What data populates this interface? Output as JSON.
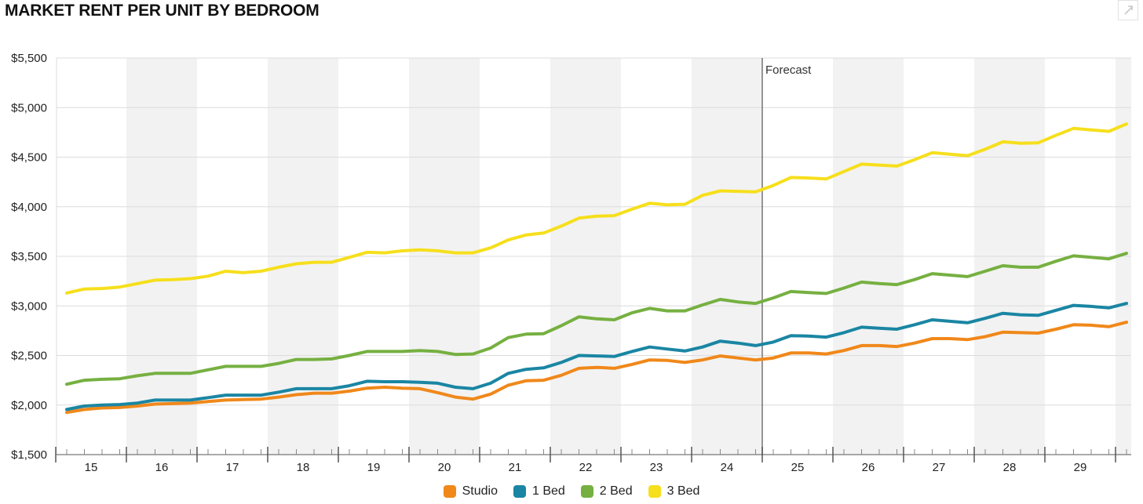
{
  "title": "MARKET RENT PER UNIT BY BEDROOM",
  "expand_icon": "expand-icon",
  "chart_data": {
    "type": "line",
    "ylim": [
      1500,
      5500
    ],
    "yticks": [
      "$1,500",
      "$2,000",
      "$2,500",
      "$3,000",
      "$3,500",
      "$4,000",
      "$4,500",
      "$5,000",
      "$5,500"
    ],
    "ytick_values": [
      1500,
      2000,
      2500,
      3000,
      3500,
      4000,
      4500,
      5000,
      5500
    ],
    "xticks": [
      "15",
      "16",
      "17",
      "18",
      "19",
      "20",
      "21",
      "22",
      "23",
      "24",
      "25",
      "26",
      "27",
      "28",
      "29"
    ],
    "x_start_quarter": "2015 Q1",
    "annotation": "Forecast",
    "forecast_after_quarter_index": 39,
    "grid": true,
    "legend_position": "bottom",
    "series": [
      {
        "name": "Studio",
        "color": "#f0881a",
        "values": [
          1925,
          1955,
          1970,
          1975,
          1990,
          2010,
          2015,
          2020,
          2035,
          2050,
          2055,
          2060,
          2080,
          2105,
          2120,
          2120,
          2140,
          2170,
          2180,
          2170,
          2165,
          2125,
          2080,
          2060,
          2110,
          2200,
          2245,
          2250,
          2300,
          2370,
          2380,
          2370,
          2410,
          2455,
          2450,
          2430,
          2455,
          2495,
          2475,
          2455,
          2475,
          2525,
          2525,
          2515,
          2550,
          2600,
          2600,
          2590,
          2625,
          2670,
          2670,
          2660,
          2690,
          2735,
          2730,
          2725,
          2765,
          2810,
          2805,
          2790,
          2835
        ]
      },
      {
        "name": "1 Bed",
        "color": "#1a86a3",
        "values": [
          1955,
          1990,
          2000,
          2005,
          2020,
          2050,
          2050,
          2050,
          2075,
          2100,
          2100,
          2100,
          2130,
          2165,
          2165,
          2165,
          2195,
          2240,
          2235,
          2235,
          2230,
          2220,
          2180,
          2165,
          2220,
          2320,
          2360,
          2375,
          2430,
          2500,
          2495,
          2490,
          2540,
          2585,
          2565,
          2545,
          2585,
          2645,
          2625,
          2600,
          2635,
          2700,
          2695,
          2685,
          2730,
          2785,
          2775,
          2765,
          2810,
          2860,
          2845,
          2830,
          2875,
          2925,
          2910,
          2905,
          2955,
          3005,
          2995,
          2980,
          3025
        ]
      },
      {
        "name": "2 Bed",
        "color": "#76b041",
        "values": [
          2210,
          2250,
          2260,
          2265,
          2295,
          2320,
          2320,
          2320,
          2355,
          2390,
          2390,
          2390,
          2420,
          2460,
          2460,
          2465,
          2500,
          2540,
          2540,
          2540,
          2550,
          2540,
          2510,
          2515,
          2575,
          2680,
          2715,
          2720,
          2800,
          2890,
          2870,
          2860,
          2930,
          2975,
          2950,
          2950,
          3010,
          3065,
          3040,
          3025,
          3080,
          3145,
          3135,
          3125,
          3180,
          3240,
          3225,
          3215,
          3265,
          3325,
          3310,
          3295,
          3350,
          3405,
          3390,
          3390,
          3450,
          3505,
          3490,
          3475,
          3530
        ]
      },
      {
        "name": "3 Bed",
        "color": "#f6df1c",
        "values": [
          3130,
          3170,
          3175,
          3190,
          3225,
          3260,
          3265,
          3275,
          3300,
          3350,
          3335,
          3350,
          3390,
          3425,
          3440,
          3440,
          3490,
          3540,
          3535,
          3555,
          3565,
          3555,
          3535,
          3535,
          3585,
          3665,
          3715,
          3735,
          3805,
          3885,
          3905,
          3910,
          3975,
          4035,
          4020,
          4025,
          4115,
          4160,
          4155,
          4150,
          4215,
          4295,
          4290,
          4280,
          4355,
          4430,
          4420,
          4410,
          4475,
          4545,
          4530,
          4515,
          4580,
          4655,
          4640,
          4645,
          4720,
          4790,
          4775,
          4760,
          4835
        ]
      }
    ]
  }
}
